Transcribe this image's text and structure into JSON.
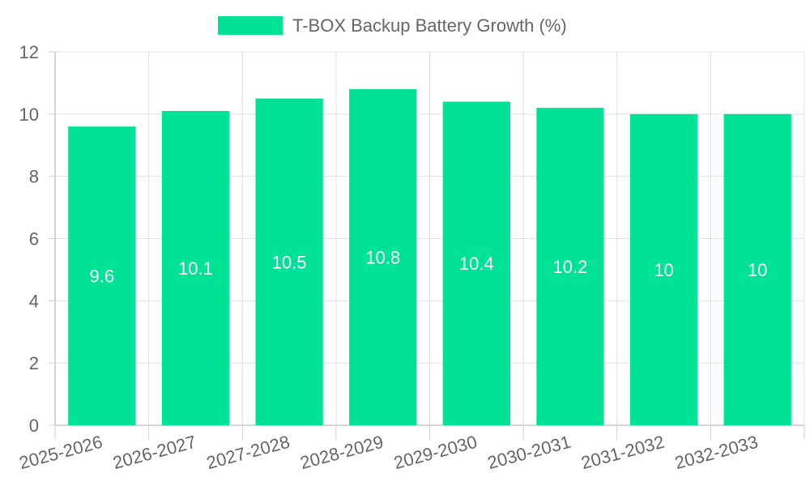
{
  "chart_data": {
    "type": "bar",
    "categories": [
      "2025-2026",
      "2026-2027",
      "2027-2028",
      "2028-2029",
      "2029-2030",
      "2030-2031",
      "2031-2032",
      "2032-2033"
    ],
    "series": [
      {
        "name": "T-BOX Backup Battery Growth (%)",
        "values": [
          9.6,
          10.1,
          10.5,
          10.8,
          10.4,
          10.2,
          10,
          10
        ],
        "color": "#00e396"
      }
    ],
    "data_labels": [
      "9.6",
      "10.1",
      "10.5",
      "10.8",
      "10.4",
      "10.2",
      "10",
      "10"
    ],
    "title": "",
    "xlabel": "",
    "ylabel": "",
    "ylim": [
      0,
      12
    ],
    "yticks": [
      0,
      2,
      4,
      6,
      8,
      10,
      12
    ],
    "ytick_labels": [
      "0",
      "2",
      "4",
      "6",
      "8",
      "10",
      "12"
    ],
    "grid": true,
    "legend_position": "top-center"
  }
}
